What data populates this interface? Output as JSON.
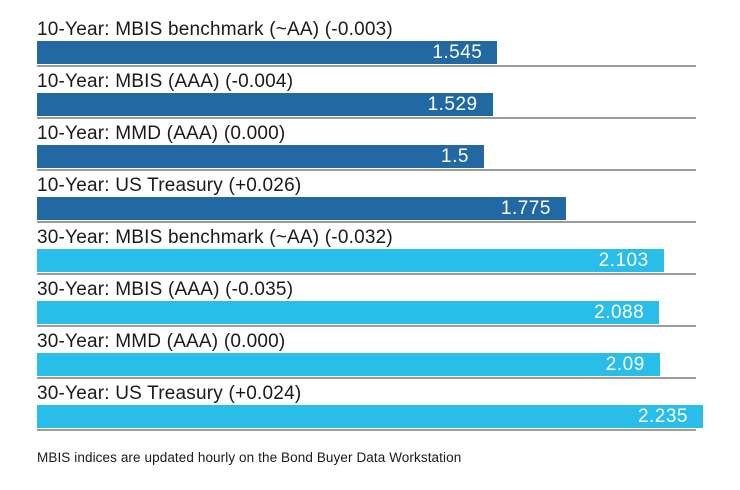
{
  "chart_data": {
    "type": "bar",
    "orientation": "horizontal",
    "categories": [
      "10-Year: MBIS benchmark (~AA) (-0.003)",
      "10-Year: MBIS (AAA) (-0.004)",
      "10-Year: MMD (AAA) (0.000)",
      "10-Year: US Treasury (+0.026)",
      "30-Year: MBIS benchmark (~AA) (-0.032)",
      "30-Year: MBIS (AAA) (-0.035)",
      "30-Year: MMD (AAA) (0.000)",
      "30-Year: US Treasury (+0.024)"
    ],
    "values": [
      1.545,
      1.529,
      1.5,
      1.775,
      2.103,
      2.088,
      2.09,
      2.235
    ],
    "display_values": [
      "1.545",
      "1.529",
      "1.5",
      "1.775",
      "2.103",
      "2.088",
      "2.09",
      "2.235"
    ],
    "groups": [
      "10-year",
      "10-year",
      "10-year",
      "10-year",
      "30-year",
      "30-year",
      "30-year",
      "30-year"
    ],
    "xlim": [
      0,
      2.235
    ],
    "grid": "off",
    "legend": "none",
    "colors": {
      "10-year": "#2269a4",
      "30-year": "#29bde9",
      "value_text": "#ffffff",
      "label_text": "#1a1a1a",
      "baseline": "#9c9c9c"
    },
    "footnote": "MBIS indices are updated hourly on the Bond Buyer Data Workstation"
  }
}
